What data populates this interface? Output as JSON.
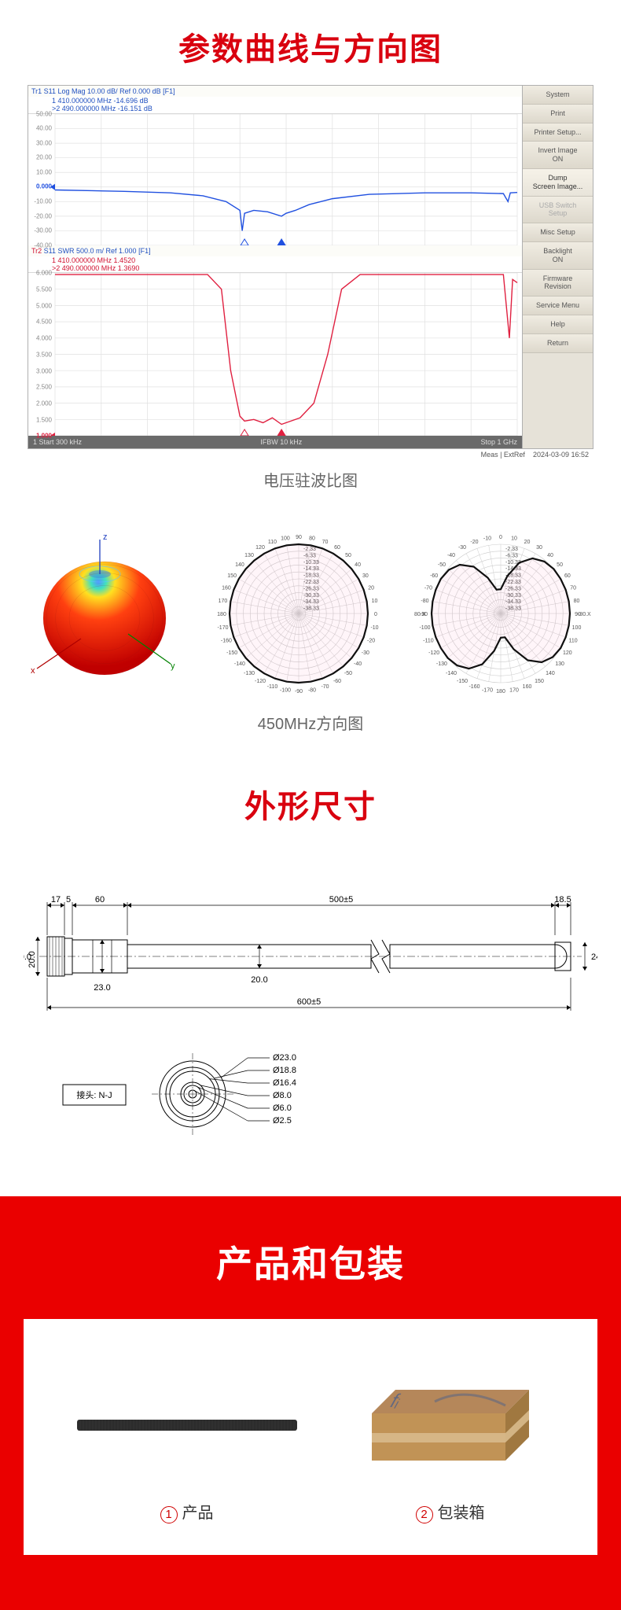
{
  "titles": {
    "curves": "参数曲线与方向图",
    "curves_color": "#d9000f",
    "vswr_caption": "电压驻波比图",
    "pattern_caption": "450MHz方向图",
    "dimensions": "外形尺寸",
    "dimensions_color": "#d9000f",
    "packaging": "产品和包装"
  },
  "vna": {
    "plot1": {
      "header": "Tr1 S11 Log Mag 10.00 dB/ Ref 0.000 dB [F1]",
      "marker1": "1   410.000000 MHz  -14.696 dB",
      "marker2": ">2  490.000000 MHz  -16.151 dB",
      "y_labels": [
        "50.00",
        "40.00",
        "30.00",
        "20.00",
        "10.00",
        "0.000",
        "-10.00",
        "-20.00",
        "-30.00",
        "-40.00"
      ],
      "ref_label": "0.000",
      "line_color": "#2050e0",
      "ylim": [
        -40,
        50
      ],
      "points": [
        [
          0,
          -2
        ],
        [
          0.08,
          -2.5
        ],
        [
          0.15,
          -3
        ],
        [
          0.25,
          -4
        ],
        [
          0.32,
          -6
        ],
        [
          0.37,
          -10
        ],
        [
          0.4,
          -16
        ],
        [
          0.405,
          -30
        ],
        [
          0.41,
          -18
        ],
        [
          0.43,
          -16
        ],
        [
          0.46,
          -17
        ],
        [
          0.49,
          -20
        ],
        [
          0.5,
          -18
        ],
        [
          0.52,
          -16
        ],
        [
          0.55,
          -12
        ],
        [
          0.6,
          -8
        ],
        [
          0.68,
          -5
        ],
        [
          0.8,
          -4
        ],
        [
          0.9,
          -4
        ],
        [
          0.97,
          -4.5
        ],
        [
          0.98,
          -10
        ],
        [
          0.985,
          -4
        ],
        [
          1.0,
          -3.7
        ]
      ],
      "markers_x": [
        0.41,
        0.49
      ]
    },
    "plot2": {
      "header_pre": "Tr2",
      "header": " S11 SWR 500.0 m/ Ref 1.000  [F1]",
      "marker1": "1   410.000000 MHz   1.4520",
      "marker2": ">2  490.000000 MHz   1.3690",
      "y_labels": [
        "6.000",
        "5.500",
        "5.000",
        "4.500",
        "4.000",
        "3.500",
        "3.000",
        "2.500",
        "2.000",
        "1.500",
        "1.000"
      ],
      "ref_label": "1.000",
      "line_color": "#e02040",
      "ylim": [
        1.0,
        6.0
      ],
      "points": [
        [
          0,
          5.95
        ],
        [
          0.06,
          5.95
        ],
        [
          0.12,
          5.95
        ],
        [
          0.2,
          5.95
        ],
        [
          0.28,
          5.95
        ],
        [
          0.33,
          5.95
        ],
        [
          0.36,
          5.5
        ],
        [
          0.38,
          3.0
        ],
        [
          0.4,
          1.6
        ],
        [
          0.41,
          1.45
        ],
        [
          0.43,
          1.5
        ],
        [
          0.45,
          1.4
        ],
        [
          0.47,
          1.55
        ],
        [
          0.49,
          1.35
        ],
        [
          0.51,
          1.45
        ],
        [
          0.53,
          1.55
        ],
        [
          0.56,
          2.0
        ],
        [
          0.59,
          3.5
        ],
        [
          0.62,
          5.5
        ],
        [
          0.66,
          5.95
        ],
        [
          0.75,
          5.95
        ],
        [
          0.85,
          5.95
        ],
        [
          0.94,
          5.95
        ],
        [
          0.97,
          5.95
        ],
        [
          0.983,
          4.0
        ],
        [
          0.99,
          5.8
        ],
        [
          1.0,
          5.7
        ]
      ],
      "markers_x": [
        0.41,
        0.49
      ]
    },
    "status": {
      "left": "1 Start 300 kHz",
      "center": "IFBW 10 kHz",
      "right": "Stop 1 GHz"
    },
    "footer": {
      "left": "Meas | ExtRef",
      "right": "2024-03-09 16:52"
    },
    "side_buttons": [
      "System",
      "Print",
      "Printer Setup...",
      "Invert Image\nON",
      "Dump\nScreen Image...",
      "USB Switch\nSetup",
      "Misc Setup",
      "Backlight\nON",
      "Firmware\nRevision",
      "Service Menu",
      "Help",
      "Return"
    ],
    "side_hl_idx": 4,
    "side_dk_idx": 5
  },
  "pattern3d": {
    "axis_z": "z",
    "axis_x": "x",
    "axis_y": "y",
    "colors": {
      "top": "#ffe020",
      "mid": "#ff4010",
      "bot": "#c00000"
    }
  },
  "polar": {
    "ring_labels": [
      "-2.33",
      "-6.33",
      "-10.33",
      "-14.33",
      "-18.33",
      "-22.33",
      "-26.33",
      "-30.33",
      "-34.33",
      "-38.33"
    ],
    "angle_step": 10,
    "grid_color": "#cccccc",
    "label_fontsize": 7,
    "p1_shape": [
      1,
      1,
      1,
      1,
      1,
      1,
      1,
      1,
      1,
      1,
      1,
      1,
      1,
      1,
      1,
      1,
      1,
      1,
      1,
      1,
      1,
      1,
      1,
      1,
      1,
      1,
      1,
      1,
      1,
      1,
      1,
      1,
      1,
      1,
      1,
      1
    ],
    "p2_shape": [
      0.35,
      0.55,
      0.78,
      0.92,
      0.98,
      1,
      1,
      1,
      1,
      1,
      1,
      1,
      1,
      0.98,
      0.92,
      0.78,
      0.55,
      0.35,
      0.35,
      0.55,
      0.78,
      0.92,
      0.98,
      1,
      1,
      1,
      1,
      1,
      1,
      1,
      1,
      0.98,
      0.92,
      0.78,
      0.55,
      0.35
    ],
    "label80": "80.X",
    "labelN80": "-80.X"
  },
  "dimensions": {
    "lengths": {
      "seg0": "17",
      "seg0b": "5",
      "seg1": "60",
      "seg2": "500±5",
      "seg3": "18.5",
      "total": "600±5"
    },
    "diam": {
      "d1": "20.0",
      "d2": "23.0",
      "d3": "20.0",
      "d4": "24"
    },
    "connector_label": "接头: N-J",
    "rings": [
      "Ø23.0",
      "Ø18.8",
      "Ø16.4",
      "Ø8.0",
      "Ø6.0",
      "Ø2.5"
    ]
  },
  "packaging": {
    "item1": "产品",
    "item2": "包装箱",
    "antenna_color": "#303030",
    "box_color": "#c19356",
    "tape_color": "#d8ba8c",
    "logo_color": "#2050a0"
  }
}
